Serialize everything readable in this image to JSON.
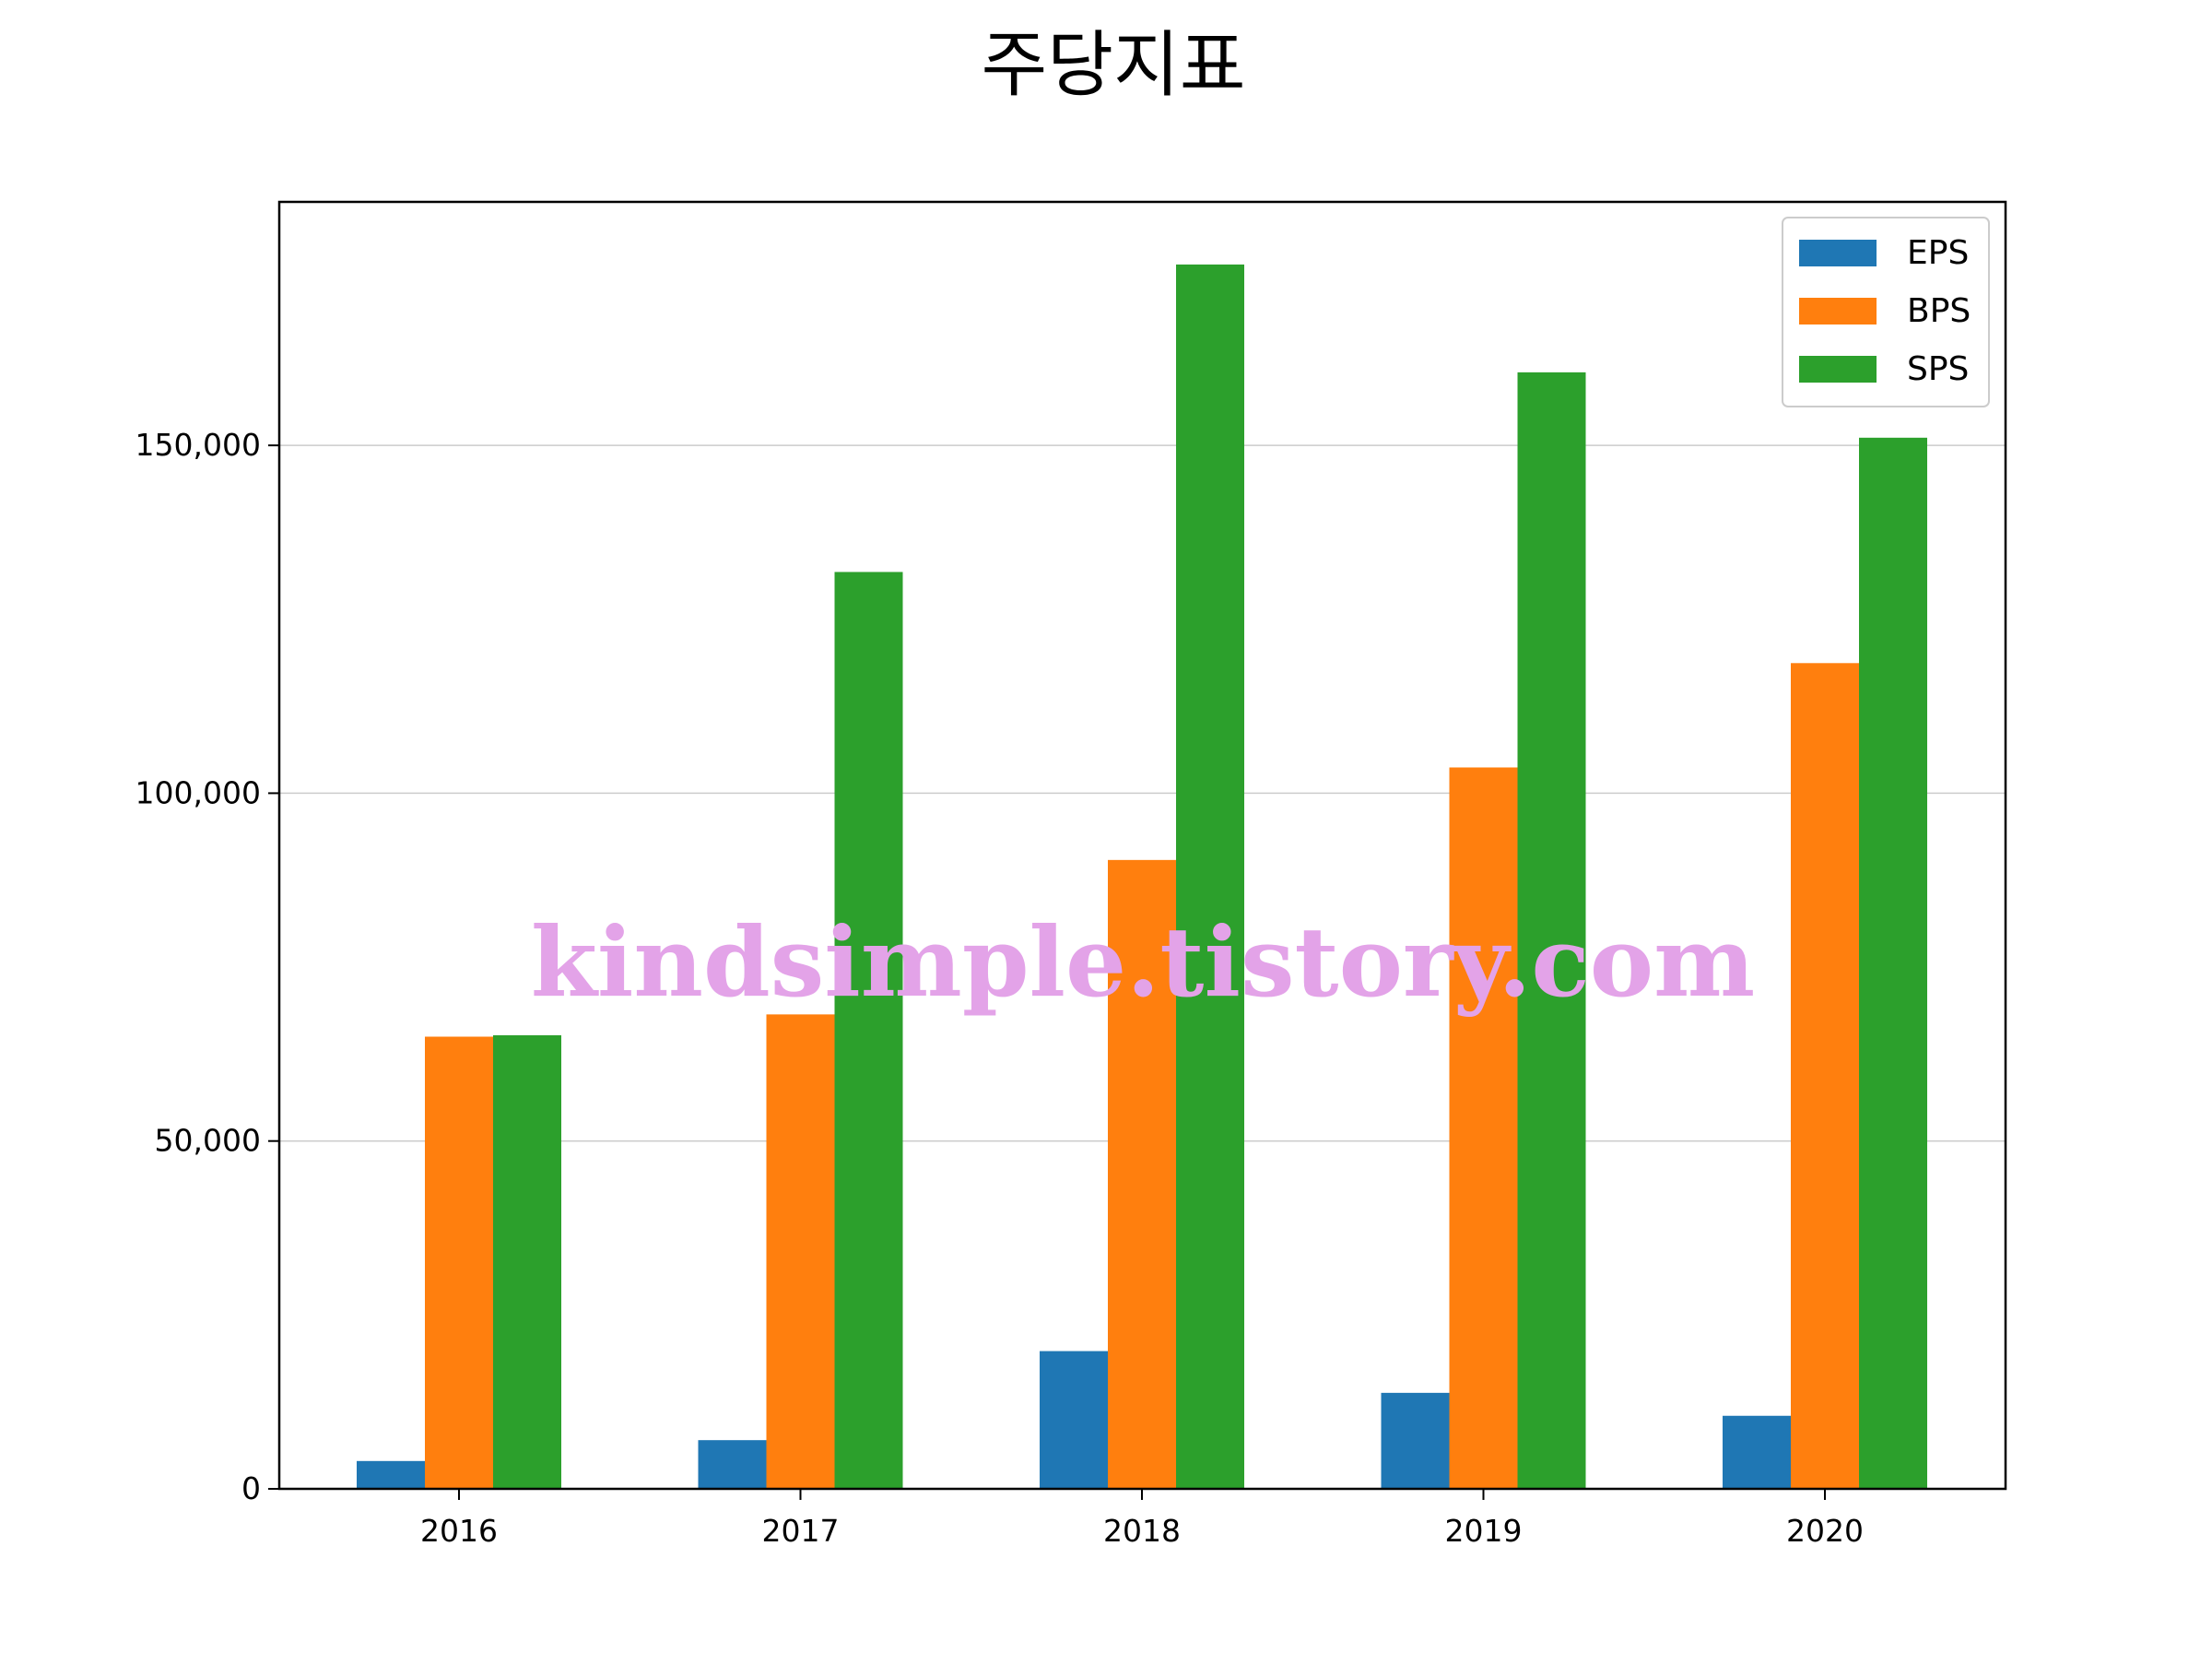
{
  "chart_data": {
    "type": "bar",
    "title": "주당지표",
    "xlabel": "",
    "ylabel": "",
    "categories": [
      "2016",
      "2017",
      "2018",
      "2019",
      "2020"
    ],
    "series": [
      {
        "name": "EPS",
        "values": [
          4000,
          7000,
          19800,
          13800,
          10500
        ]
      },
      {
        "name": "BPS",
        "values": [
          65000,
          68200,
          90400,
          103700,
          118700
        ]
      },
      {
        "name": "SPS",
        "values": [
          65200,
          131800,
          176000,
          160500,
          151100
        ]
      }
    ],
    "ylim": [
      0,
      185000
    ],
    "yticks": [
      0,
      50000,
      100000,
      150000
    ],
    "ytick_labels": [
      "0",
      "50,000",
      "100,000",
      "150,000"
    ],
    "grid": "y",
    "legend_position": "top-right",
    "colors": {
      "EPS": "#1f77b4",
      "BPS": "#ff7f0e",
      "SPS": "#2ca02c"
    },
    "grid_color": "#cccccc"
  },
  "watermark": {
    "text": "kindsimple.tistory.com",
    "color": "#e3a3e8"
  }
}
